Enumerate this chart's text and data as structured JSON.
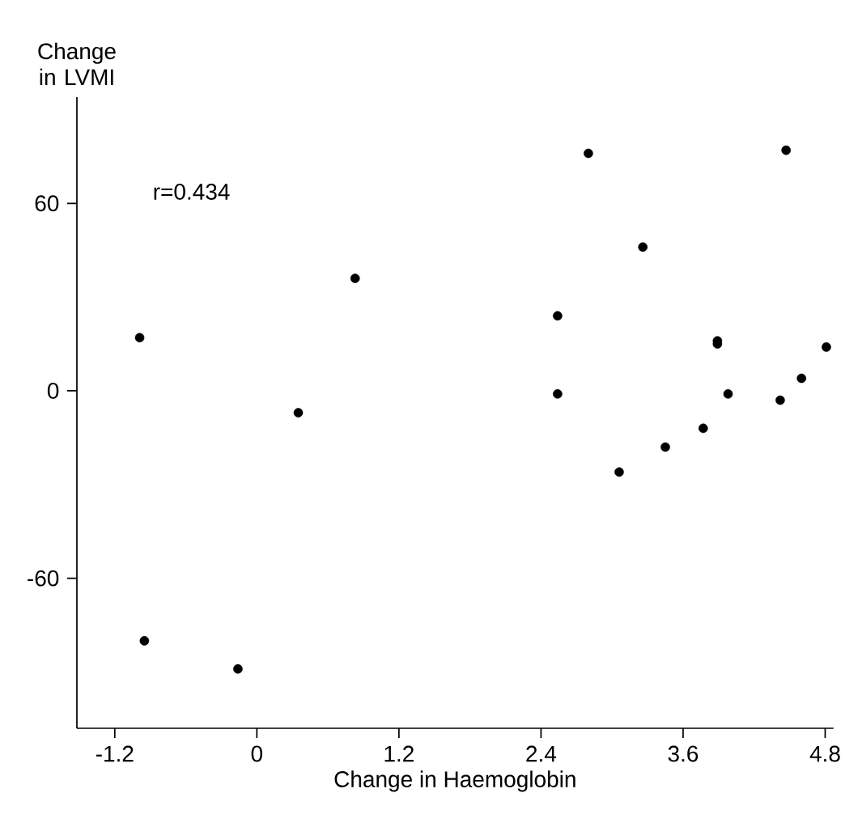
{
  "chart_data": {
    "type": "scatter",
    "xlabel": "Change in Haemoglobin",
    "ylabel": "Change in LVMI",
    "annotations": [
      "r=0.434"
    ],
    "xlim": [
      -1.52,
      4.87
    ],
    "ylim": [
      -108,
      94
    ],
    "xticks": [
      -1.2,
      0,
      1.2,
      2.4,
      3.6,
      4.8
    ],
    "yticks": [
      -60,
      0,
      60
    ],
    "marker": "circle",
    "series": [
      {
        "color": "#000000",
        "x": [
          -0.99,
          -0.95,
          -0.16,
          0.35,
          0.83,
          2.54,
          2.54,
          2.8,
          3.06,
          3.26,
          3.45,
          3.77,
          3.89,
          3.89,
          3.98,
          4.42,
          4.47,
          4.6,
          4.81
        ],
        "values": [
          17,
          -80,
          -89,
          -7,
          36,
          24,
          -1,
          76,
          -26,
          46,
          -18,
          -12,
          16,
          15,
          -1,
          -3,
          77,
          4,
          14
        ]
      }
    ]
  }
}
